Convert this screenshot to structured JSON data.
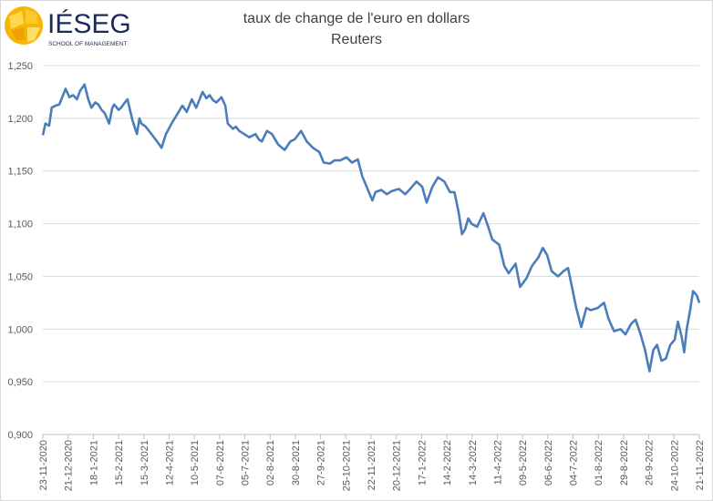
{
  "logo": {
    "name": "IÉSEG",
    "tagline": "SCHOOL OF MANAGEMENT"
  },
  "chart_data": {
    "type": "line",
    "title": "taux de change de l'euro en dollars",
    "subtitle": "Reuters",
    "xlabel": "",
    "ylabel": "",
    "ylim": [
      0.9,
      1.25
    ],
    "y_ticks": [
      "1,250",
      "1,200",
      "1,150",
      "1,100",
      "1,050",
      "1,000",
      "0,950",
      "0,900"
    ],
    "y_tick_values": [
      1.25,
      1.2,
      1.15,
      1.1,
      1.05,
      1.0,
      0.95,
      0.9
    ],
    "x_unit": "weeks since 23-11-2020",
    "x_ticks": [
      "23-11-2020",
      "21-12-2020",
      "18-1-2021",
      "15-2-2021",
      "15-3-2021",
      "12-4-2021",
      "10-5-2021",
      "07-6-2021",
      "05-7-2021",
      "02-8-2021",
      "30-8-2021",
      "27-9-2021",
      "25-10-2021",
      "22-11-2021",
      "20-12-2021",
      "17-1-2022",
      "14-2-2022",
      "14-3-2022",
      "11-4-2022",
      "09-5-2022",
      "06-6-2022",
      "04-7-2022",
      "01-8-2022",
      "29-8-2022",
      "26-9-2022",
      "24-10-2022",
      "21-11-2022"
    ],
    "xlim": [
      0,
      104
    ],
    "grid": true,
    "color": "#4a7ebb",
    "series": [
      {
        "name": "EUR/USD",
        "points": [
          [
            0,
            1.184
          ],
          [
            0.4,
            1.195
          ],
          [
            1.0,
            1.193
          ],
          [
            1.4,
            1.21
          ],
          [
            2.0,
            1.212
          ],
          [
            2.6,
            1.213
          ],
          [
            3.2,
            1.222
          ],
          [
            3.6,
            1.228
          ],
          [
            4.2,
            1.22
          ],
          [
            4.8,
            1.222
          ],
          [
            5.4,
            1.218
          ],
          [
            5.9,
            1.226
          ],
          [
            6.6,
            1.232
          ],
          [
            7.2,
            1.218
          ],
          [
            7.7,
            1.21
          ],
          [
            8.3,
            1.215
          ],
          [
            8.8,
            1.213
          ],
          [
            9.3,
            1.208
          ],
          [
            9.8,
            1.205
          ],
          [
            10.5,
            1.195
          ],
          [
            11.0,
            1.21
          ],
          [
            11.3,
            1.213
          ],
          [
            12.0,
            1.208
          ],
          [
            12.4,
            1.21
          ],
          [
            13.0,
            1.215
          ],
          [
            13.4,
            1.218
          ],
          [
            14.2,
            1.198
          ],
          [
            14.9,
            1.185
          ],
          [
            15.3,
            1.2
          ],
          [
            15.6,
            1.195
          ],
          [
            16.3,
            1.192
          ],
          [
            17.2,
            1.185
          ],
          [
            18.1,
            1.178
          ],
          [
            18.8,
            1.172
          ],
          [
            19.5,
            1.185
          ],
          [
            20.4,
            1.195
          ],
          [
            21.4,
            1.205
          ],
          [
            22.1,
            1.212
          ],
          [
            22.8,
            1.206
          ],
          [
            23.6,
            1.218
          ],
          [
            24.3,
            1.21
          ],
          [
            25.3,
            1.225
          ],
          [
            25.9,
            1.219
          ],
          [
            26.4,
            1.222
          ],
          [
            27.0,
            1.217
          ],
          [
            27.5,
            1.215
          ],
          [
            28.3,
            1.22
          ],
          [
            28.9,
            1.212
          ],
          [
            29.3,
            1.195
          ],
          [
            30.1,
            1.19
          ],
          [
            30.6,
            1.192
          ],
          [
            31.1,
            1.188
          ],
          [
            31.9,
            1.185
          ],
          [
            32.7,
            1.182
          ],
          [
            33.7,
            1.185
          ],
          [
            34.2,
            1.18
          ],
          [
            34.7,
            1.178
          ],
          [
            35.5,
            1.188
          ],
          [
            36.3,
            1.185
          ],
          [
            37.3,
            1.175
          ],
          [
            38.3,
            1.17
          ],
          [
            39.2,
            1.178
          ],
          [
            39.9,
            1.18
          ],
          [
            40.9,
            1.188
          ],
          [
            41.8,
            1.178
          ],
          [
            42.8,
            1.172
          ],
          [
            43.8,
            1.168
          ],
          [
            44.5,
            1.158
          ],
          [
            45.5,
            1.157
          ],
          [
            46.2,
            1.16
          ],
          [
            47.1,
            1.16
          ],
          [
            48.1,
            1.163
          ],
          [
            49.0,
            1.158
          ],
          [
            49.9,
            1.161
          ],
          [
            50.6,
            1.145
          ],
          [
            51.3,
            1.135
          ],
          [
            52.2,
            1.122
          ],
          [
            52.7,
            1.13
          ],
          [
            53.6,
            1.132
          ],
          [
            54.5,
            1.128
          ],
          [
            55.3,
            1.131
          ],
          [
            56.4,
            1.133
          ],
          [
            57.4,
            1.128
          ],
          [
            58.2,
            1.133
          ],
          [
            59.2,
            1.14
          ],
          [
            60.1,
            1.135
          ],
          [
            60.8,
            1.12
          ],
          [
            61.7,
            1.135
          ],
          [
            62.6,
            1.144
          ],
          [
            63.6,
            1.14
          ],
          [
            64.5,
            1.13
          ],
          [
            65.2,
            1.13
          ],
          [
            65.9,
            1.11
          ],
          [
            66.4,
            1.09
          ],
          [
            66.9,
            1.095
          ],
          [
            67.4,
            1.105
          ],
          [
            67.9,
            1.1
          ],
          [
            68.8,
            1.097
          ],
          [
            69.8,
            1.11
          ],
          [
            70.5,
            1.098
          ],
          [
            71.2,
            1.085
          ],
          [
            72.3,
            1.08
          ],
          [
            73.1,
            1.06
          ],
          [
            73.8,
            1.053
          ],
          [
            74.9,
            1.062
          ],
          [
            75.6,
            1.04
          ],
          [
            76.6,
            1.048
          ],
          [
            77.5,
            1.06
          ],
          [
            78.5,
            1.068
          ],
          [
            79.2,
            1.077
          ],
          [
            79.9,
            1.07
          ],
          [
            80.6,
            1.055
          ],
          [
            81.6,
            1.05
          ],
          [
            82.5,
            1.055
          ],
          [
            83.2,
            1.058
          ],
          [
            84.0,
            1.035
          ],
          [
            84.5,
            1.02
          ],
          [
            85.3,
            1.002
          ],
          [
            86.1,
            1.02
          ],
          [
            86.8,
            1.018
          ],
          [
            87.9,
            1.02
          ],
          [
            88.9,
            1.025
          ],
          [
            89.6,
            1.01
          ],
          [
            90.5,
            0.998
          ],
          [
            91.5,
            1.0
          ],
          [
            92.3,
            0.995
          ],
          [
            93.2,
            1.005
          ],
          [
            93.9,
            1.009
          ],
          [
            94.7,
            0.995
          ],
          [
            95.4,
            0.98
          ],
          [
            96.1,
            0.96
          ],
          [
            96.7,
            0.98
          ],
          [
            97.3,
            0.985
          ],
          [
            98.0,
            0.97
          ],
          [
            98.7,
            0.972
          ],
          [
            99.4,
            0.985
          ],
          [
            100.1,
            0.99
          ],
          [
            100.6,
            1.007
          ],
          [
            101.2,
            0.993
          ],
          [
            101.6,
            0.978
          ],
          [
            102.0,
            1.0
          ],
          [
            102.6,
            1.02
          ],
          [
            103.0,
            1.036
          ],
          [
            103.6,
            1.032
          ],
          [
            104.0,
            1.025
          ]
        ]
      }
    ]
  }
}
